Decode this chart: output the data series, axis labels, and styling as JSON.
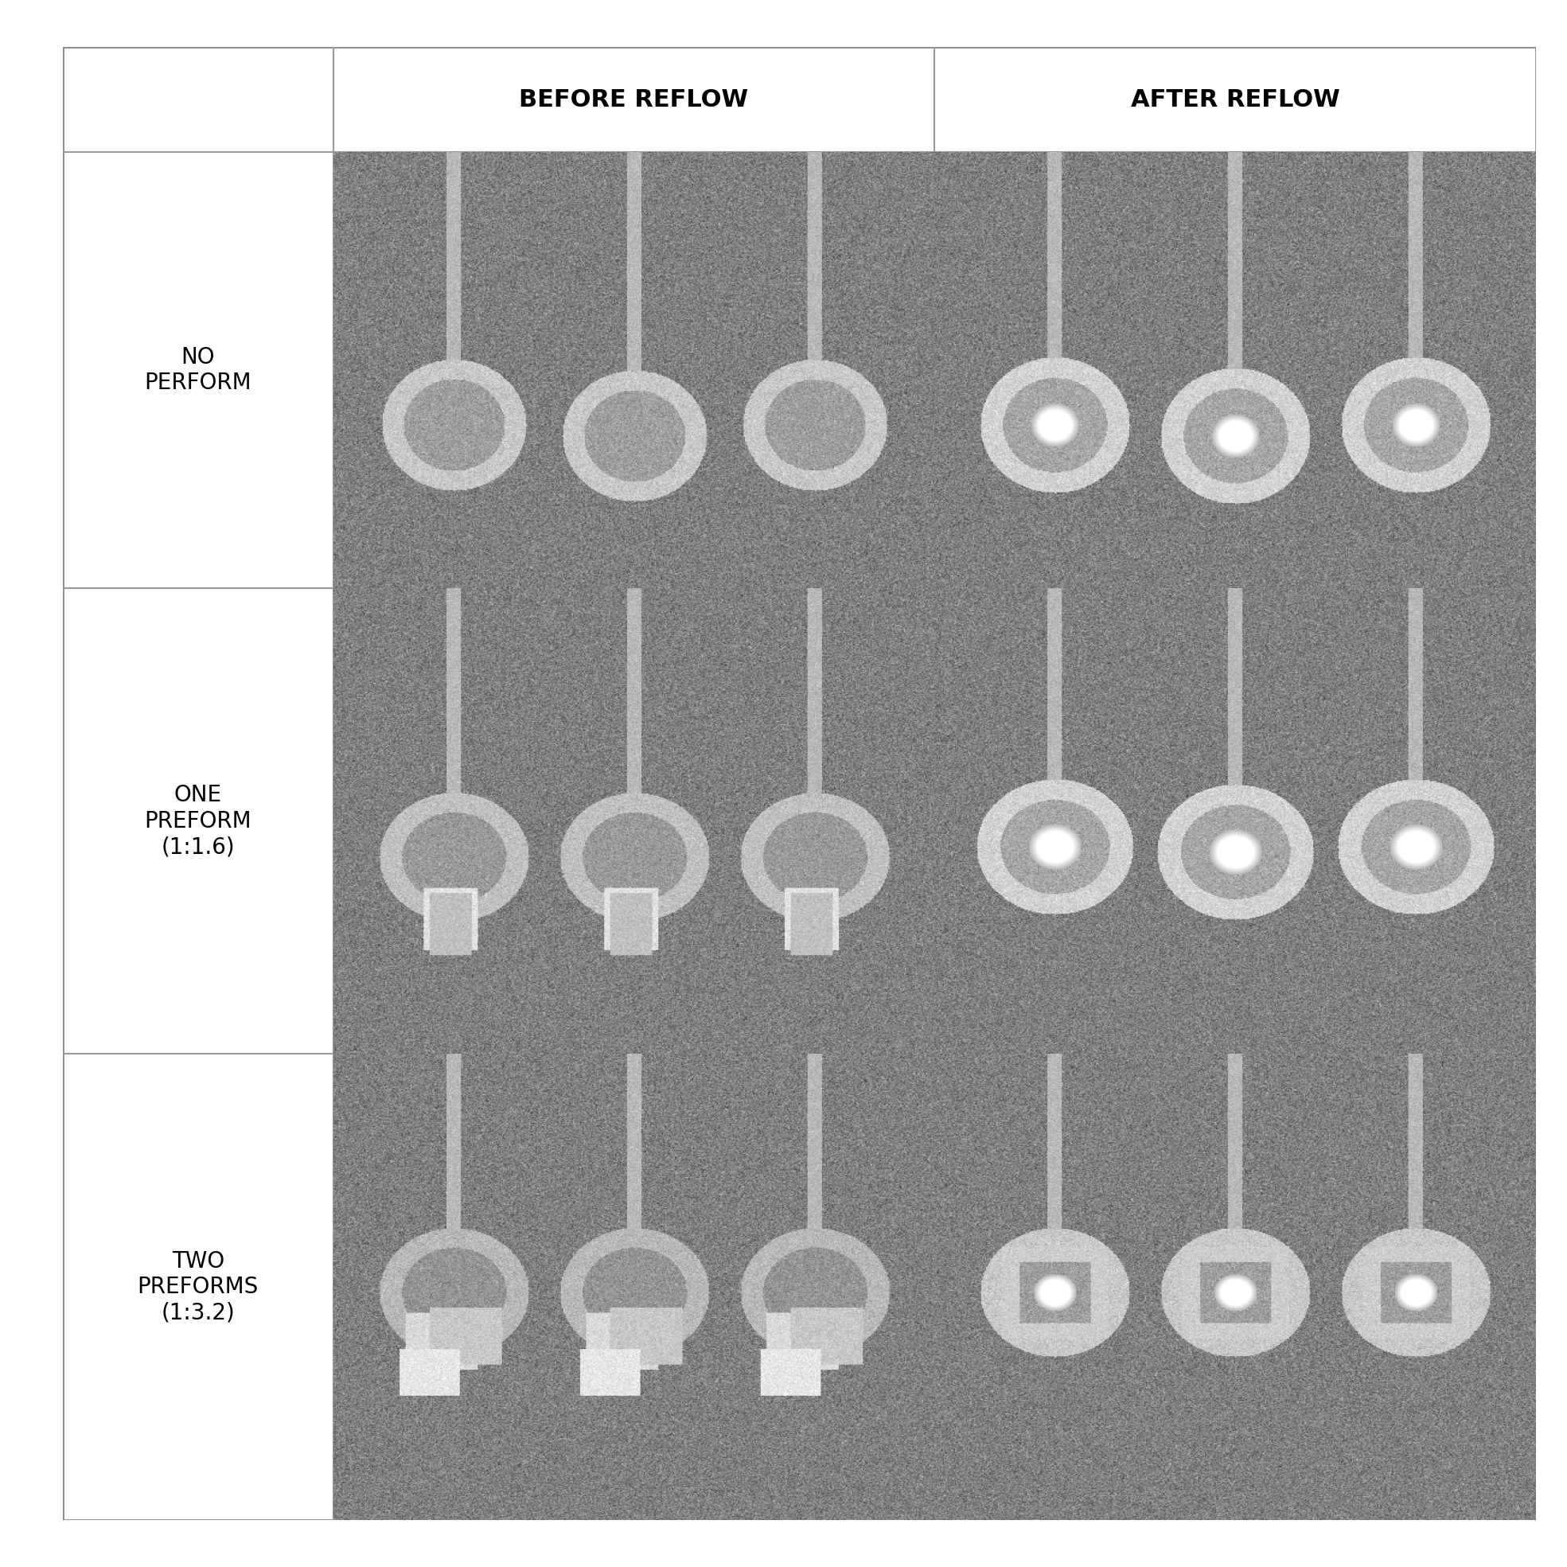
{
  "title": "",
  "col_headers": [
    "BEFORE REFLOW",
    "AFTER REFLOW"
  ],
  "row_labels": [
    "NO\nPERFORM",
    "ONE\nPREFORM\n(１:1.6)",
    "TWO\nPREFORMS\n(１:3.2)"
  ],
  "row_labels_plain": [
    "NO\nPERFORM",
    "ONE\nPREFORM\n(1:1.6)",
    "TWO\nPREFORMS\n(1:3.2)"
  ],
  "bg_color": "#ffffff",
  "header_bg": "#ffffff",
  "cell_bg": "#888888",
  "border_color": "#aaaaaa",
  "header_fontsize": 22,
  "label_fontsize": 20,
  "fig_width": 19.69,
  "fig_height": 19.69
}
